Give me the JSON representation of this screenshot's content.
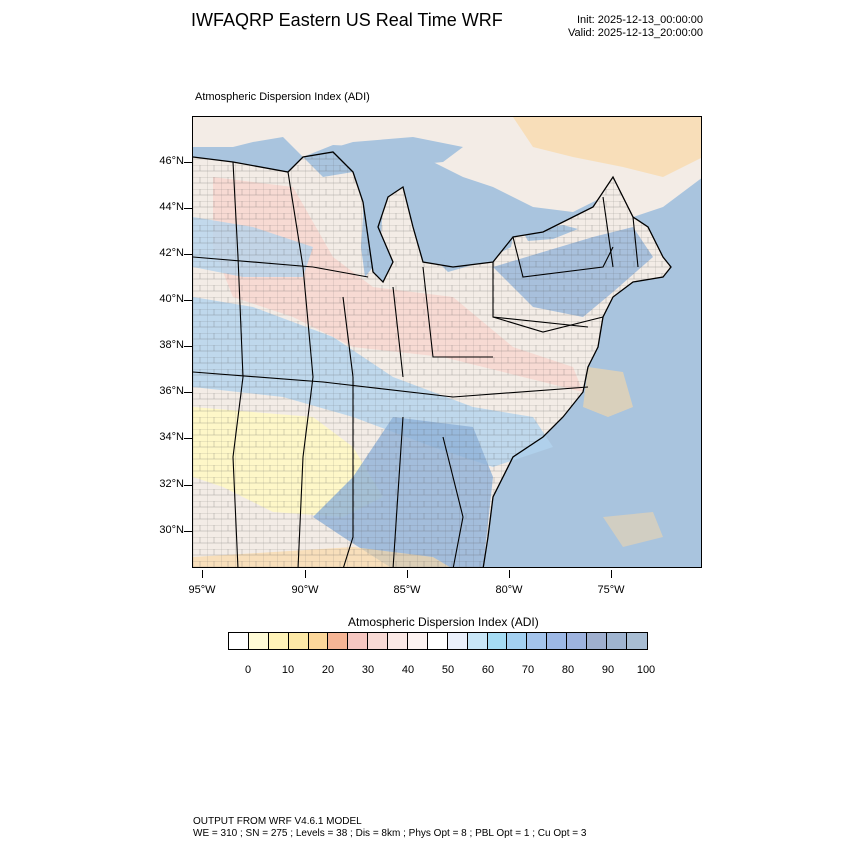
{
  "header": {
    "title": "IWFAQRP Eastern US Real Time WRF",
    "init": "Init: 2025-12-13_00:00:00",
    "valid": "Valid: 2025-12-13_20:00:00"
  },
  "map": {
    "field_label": "Atmospheric Dispersion Index   (ADI)",
    "lat_labels": [
      "46°N",
      "44°N",
      "42°N",
      "40°N",
      "38°N",
      "36°N",
      "34°N",
      "32°N",
      "30°N"
    ],
    "lon_labels": [
      "95°W",
      "90°W",
      "85°W",
      "80°W",
      "75°W"
    ],
    "colors": {
      "water": "#a9c4de",
      "land_light": "#f3ece6",
      "pink": "#f7d7cf",
      "yellow": "#fff8c4",
      "blue": "#b2d3ee",
      "orange": "#fad8a5",
      "deep_blue": "#8fb1d8"
    }
  },
  "colorbar": {
    "title": "Atmospheric Dispersion Index  (ADI)",
    "labels": [
      "0",
      "10",
      "20",
      "30",
      "40",
      "50",
      "60",
      "70",
      "80",
      "90",
      "100"
    ],
    "colors": [
      "#ffffff",
      "#fffbd6",
      "#fff3b8",
      "#fde9a6",
      "#fcd79a",
      "#f6b595",
      "#f6c7c1",
      "#f8dad5",
      "#fbe9e6",
      "#fdf3f1",
      "#ffffff",
      "#eaf0fb",
      "#c8e6f7",
      "#a5dcf4",
      "#a3d0f1",
      "#a4c4ec",
      "#9db8e6",
      "#9eb3df",
      "#9fafcf",
      "#9fb4d0",
      "#a8bdd3"
    ]
  },
  "footer": {
    "line1": "OUTPUT FROM WRF V4.6.1 MODEL",
    "line2": "WE = 310 ; SN = 275 ; Levels = 38 ; Dis = 8km ; Phys Opt = 8 ; PBL Opt = 1 ; Cu Opt = 3"
  }
}
